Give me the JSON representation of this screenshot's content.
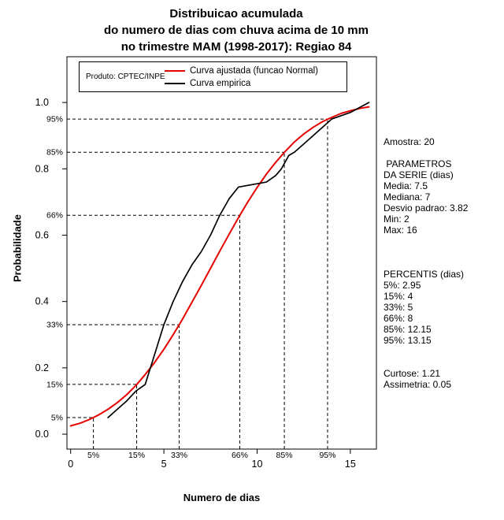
{
  "title": {
    "line1": "Distribuicao acumulada",
    "line2": "do numero de dias com chuva acima de 10 mm",
    "line3": "no trimestre MAM (1998-2017): Regiao 84"
  },
  "legend": {
    "product_label": "Produto: CPTEC/INPE",
    "entries": [
      {
        "label": "Curva ajustada (funcao Normal)",
        "color": "#e60000"
      },
      {
        "label": "Curva empirica",
        "color": "#000000"
      }
    ]
  },
  "side_panel": {
    "lines": [
      "Amostra: 20",
      "",
      " PARAMETROS",
      "DA SERIE (dias)",
      "Media: 7.5",
      "Mediana: 7",
      "Desvio padrao: 3.82",
      "Min: 2",
      "Max: 16",
      "",
      "",
      "",
      "PERCENTIS (dias)",
      "5%: 2.95",
      "15%: 4",
      "33%: 5",
      "66%: 8",
      "85%: 12.15",
      "95%: 13.15",
      "",
      "",
      "Curtose: 1.21",
      "Assimetria: 0.05"
    ]
  },
  "chart_data": {
    "type": "line",
    "title": "Distribuicao acumulada do numero de dias com chuva acima de 10 mm no trimestre MAM (1998-2017): Regiao 84",
    "xlabel": "Numero de dias",
    "ylabel": "Probabilidade",
    "xlim": [
      -0.2,
      16.4
    ],
    "ylim": [
      -0.045,
      1.138
    ],
    "x_ticks": [
      0,
      5,
      10,
      15
    ],
    "y_ticks": [
      "0.0",
      "0.2",
      "0.4",
      "0.6",
      "0.8",
      "1.0"
    ],
    "grid": false,
    "legend_position": "top-left-inside",
    "normal_fit": {
      "media": 7.5,
      "desvio_padrao": 3.82
    },
    "sample_size": 20,
    "series": [
      {
        "name": "Curva ajustada (funcao Normal)",
        "color": "#e60000",
        "width": 2,
        "x": [
          0,
          0.5,
          1,
          1.5,
          2,
          2.5,
          3,
          3.5,
          4,
          4.5,
          5,
          5.5,
          6,
          6.5,
          7,
          7.5,
          8,
          8.5,
          9,
          9.5,
          10,
          10.5,
          11,
          11.5,
          12,
          12.5,
          13,
          13.5,
          14,
          14.5,
          15,
          15.5,
          16
        ],
        "y": [
          0.025,
          0.033,
          0.044,
          0.058,
          0.075,
          0.095,
          0.119,
          0.147,
          0.18,
          0.216,
          0.256,
          0.3,
          0.347,
          0.397,
          0.448,
          0.5,
          0.552,
          0.603,
          0.653,
          0.7,
          0.744,
          0.784,
          0.82,
          0.852,
          0.881,
          0.905,
          0.925,
          0.942,
          0.955,
          0.967,
          0.975,
          0.982,
          0.987
        ]
      },
      {
        "name": "Curva empirica",
        "color": "#000000",
        "width": 1.7,
        "x": [
          2,
          2.5,
          3,
          3.5,
          4,
          4.5,
          5,
          5.5,
          6,
          6.5,
          7,
          7.5,
          8,
          8.5,
          9,
          9.5,
          10,
          10.5,
          11,
          11.3,
          11.7,
          12,
          12.5,
          13,
          13.5,
          14,
          14.5,
          15,
          15.5,
          16
        ],
        "y": [
          0.05,
          0.075,
          0.1,
          0.13,
          0.15,
          0.24,
          0.33,
          0.4,
          0.46,
          0.51,
          0.55,
          0.6,
          0.66,
          0.71,
          0.745,
          0.75,
          0.755,
          0.76,
          0.78,
          0.8,
          0.84,
          0.85,
          0.875,
          0.9,
          0.925,
          0.95,
          0.96,
          0.97,
          0.985,
          1.0
        ]
      }
    ],
    "percentile_guides": [
      {
        "label": "5%",
        "prob": 0.05,
        "x": 1.22
      },
      {
        "label": "15%",
        "prob": 0.15,
        "x": 3.54
      },
      {
        "label": "33%",
        "prob": 0.33,
        "x": 5.82
      },
      {
        "label": "66%",
        "prob": 0.66,
        "x": 9.07
      },
      {
        "label": "85%",
        "prob": 0.85,
        "x": 11.46
      },
      {
        "label": "95%",
        "prob": 0.95,
        "x": 13.78
      }
    ]
  }
}
